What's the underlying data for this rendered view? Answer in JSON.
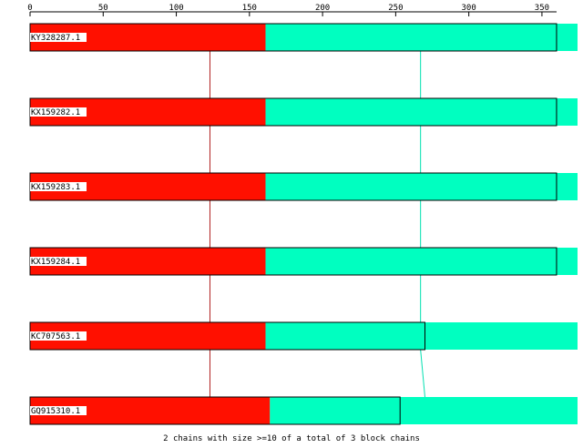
{
  "axis": {
    "min": 0,
    "max": 360,
    "ticks": [
      0,
      50,
      100,
      150,
      200,
      250,
      300,
      350
    ]
  },
  "colors": {
    "block1": "#ff1000",
    "block2": "#00ffc0",
    "line1": "#b02020",
    "line2": "#00e0b0",
    "outline": "#000000"
  },
  "rows": [
    {
      "label": "KY328287.1",
      "block1": [
        0,
        161
      ],
      "block2": [
        161,
        360
      ],
      "tail_visible": true
    },
    {
      "label": "KX159282.1",
      "block1": [
        0,
        161
      ],
      "block2": [
        161,
        360
      ],
      "tail_visible": true
    },
    {
      "label": "KX159283.1",
      "block1": [
        0,
        161
      ],
      "block2": [
        161,
        360
      ],
      "tail_visible": true
    },
    {
      "label": "KX159284.1",
      "block1": [
        0,
        161
      ],
      "block2": [
        161,
        360
      ],
      "tail_visible": true
    },
    {
      "label": "KC707563.1",
      "block1": [
        0,
        161
      ],
      "block2": [
        161,
        270
      ],
      "tail_visible": true
    },
    {
      "label": "GQ915310.1",
      "block1": [
        0,
        164
      ],
      "block2": [
        164,
        253
      ],
      "tail_visible": true
    }
  ],
  "connectors": {
    "line1_at": 123,
    "line2_at": [
      267,
      267,
      267,
      267,
      267,
      270
    ]
  },
  "caption": "2 chains with size >=10 of a total of 3 block chains"
}
